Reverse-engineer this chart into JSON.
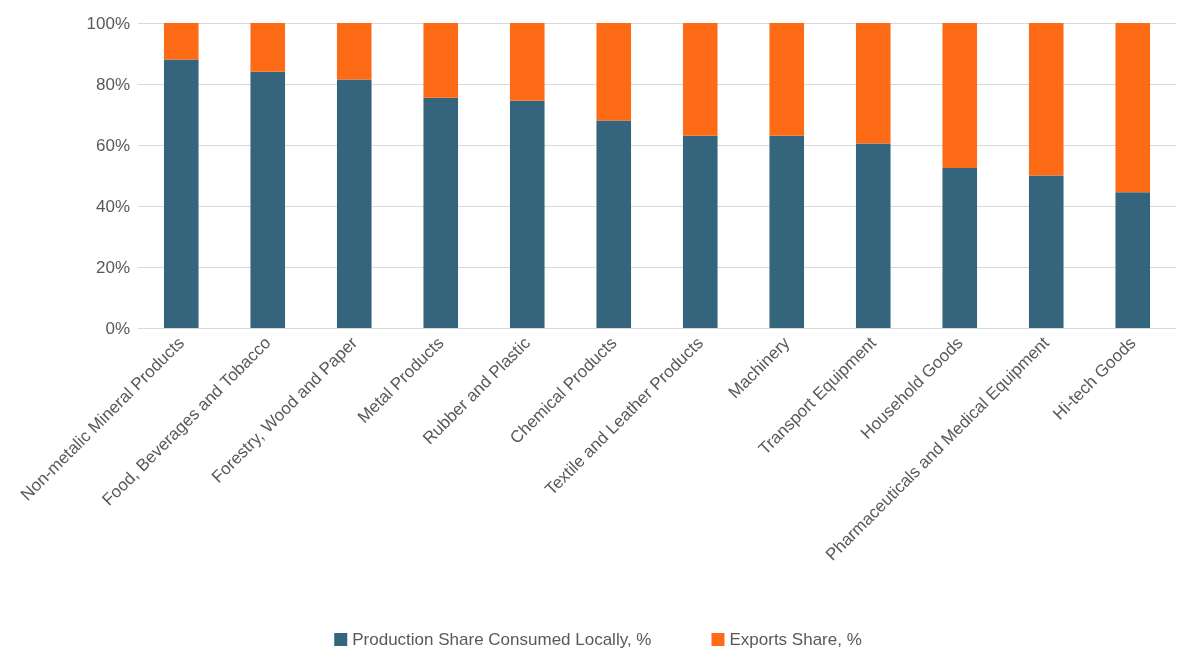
{
  "chart_data": {
    "type": "bar",
    "stacked": true,
    "categories": [
      "Non-metalic Mineral Products",
      "Food, Beverages and Tobacco",
      "Forestry, Wood and Paper",
      "Metal Products",
      "Rubber and Plastic",
      "Chemical Products",
      "Textile and Leather Products",
      "Machinery",
      "Transport Equipment",
      "Household Goods",
      "Pharmaceuticals and Medical Equipment",
      "Hi-tech Goods"
    ],
    "series": [
      {
        "name": "Production Share Consumed Locally, %",
        "color": "#35657d",
        "values": [
          88,
          84,
          81.5,
          75.5,
          74.5,
          68,
          63,
          63,
          60.5,
          52.5,
          50,
          44.5
        ]
      },
      {
        "name": "Exports Share, %",
        "color": "#fe6b16",
        "values": [
          12,
          16,
          18.5,
          24.5,
          25.5,
          32,
          37,
          37,
          39.5,
          47.5,
          50,
          55.5
        ]
      }
    ],
    "ylim": [
      0,
      100
    ],
    "yticks": [
      {
        "value": 0,
        "label": "0%"
      },
      {
        "value": 20,
        "label": "20%"
      },
      {
        "value": 40,
        "label": "40%"
      },
      {
        "value": 60,
        "label": "60%"
      },
      {
        "value": 80,
        "label": "80%"
      },
      {
        "value": 100,
        "label": "100%"
      }
    ],
    "grid": "y",
    "legend": "bottom"
  }
}
